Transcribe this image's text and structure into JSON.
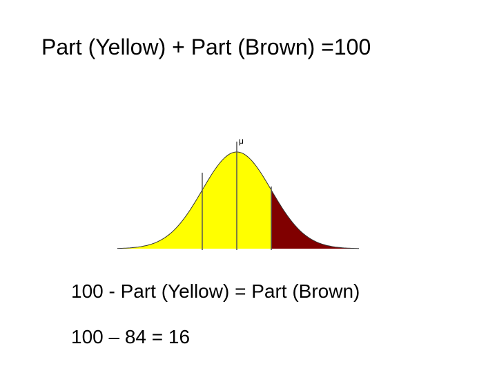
{
  "title": "Part (Yellow) + Part (Brown) =100",
  "diagram": {
    "mean_label": "μ"
  },
  "equations": [
    "100 - Part (Yellow) = Part (Brown)",
    "100 – 84 = 16"
  ]
}
